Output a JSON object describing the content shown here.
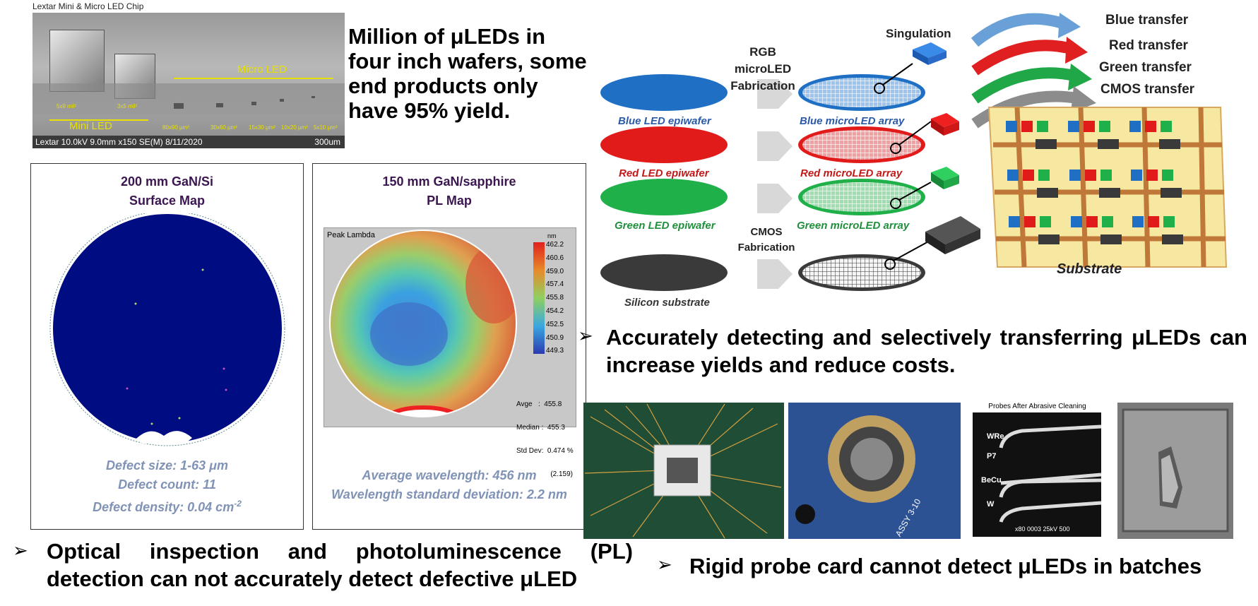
{
  "sem": {
    "title": "Lextar Mini & Micro LED Chip",
    "micro_label": "Micro LED",
    "mini_label": "Mini LED",
    "size_labels": [
      "5x9 mil²",
      "3x5 mil²",
      "80x90 μm²",
      "30x60 μm²",
      "15x30 μm²",
      "10x20 μm²",
      "5x10 μm²"
    ],
    "footer_left": "Lextar 10.0kV 9.0mm x150 SE(M) 8/11/2020",
    "footer_right": "300um"
  },
  "million_text": "Million of μLEDs in four inch wafers, some end products only have 95% yield.",
  "panel_gan_si": {
    "title_line1": "200 mm GaN/Si",
    "title_line2": "Surface Map",
    "stat1": "Defect size: 1-63 μm",
    "stat2": "Defect count: 11",
    "stat3": "Defect density: 0.04 cm",
    "stat3_sup": "-2"
  },
  "panel_sapphire": {
    "title_line1": "150 mm GaN/sapphire",
    "title_line2": "PL Map",
    "map_label": "Peak Lambda",
    "unit": "nm",
    "scale_values": [
      "462.2",
      "460.6",
      "459.0",
      "457.4",
      "455.8",
      "454.2",
      "452.5",
      "450.9",
      "449.3"
    ],
    "stats": [
      "Avge   :  455.8",
      "Median :  455.3",
      "Std Dev:  0.474 %",
      "(2.159)"
    ],
    "stat1": "Average wavelength: 456 nm",
    "stat2": "Wavelength standard deviation: 2.2 nm"
  },
  "bullet_optical": "Optical inspection and photoluminescence (PL) detection can not accurately detect defective μLED",
  "bullet_accurate": "Accurately detecting and selectively transferring μLEDs can increase yields and reduce costs.",
  "bullet_probe": "Rigid probe card cannot detect μLEDs in batches",
  "bullet_marker": "➢",
  "diagram": {
    "fab_label": "RGB microLED Fabrication",
    "singulation": "Singulation",
    "cmos_fab": "CMOS Fabrication",
    "transfers": [
      "Blue transfer",
      "Red transfer",
      "Green transfer",
      "CMOS transfer"
    ],
    "substrate": "Substrate",
    "rows": [
      {
        "wafer": "Blue LED epiwafer",
        "array": "Blue microLED array",
        "color": "#1f6fc4",
        "text_color": "#2a5aa8"
      },
      {
        "wafer": "Red LED epiwafer",
        "array": "Red microLED array",
        "color": "#e11a1a",
        "text_color": "#c21818"
      },
      {
        "wafer": "Green LED epiwafer",
        "array": "Green microLED array",
        "color": "#1fb04a",
        "text_color": "#1f8f3c"
      },
      {
        "wafer": "Silicon substrate",
        "array": "",
        "color": "#3a3a3a",
        "text_color": "#333333"
      }
    ]
  },
  "probe_photo": {
    "title": "Probes After Abrasive Cleaning",
    "labels": [
      "WRe",
      "P7",
      "BeCu",
      "W"
    ],
    "footer": "x80  0003  25kV  500"
  },
  "board_text": "ASSY 3-10"
}
